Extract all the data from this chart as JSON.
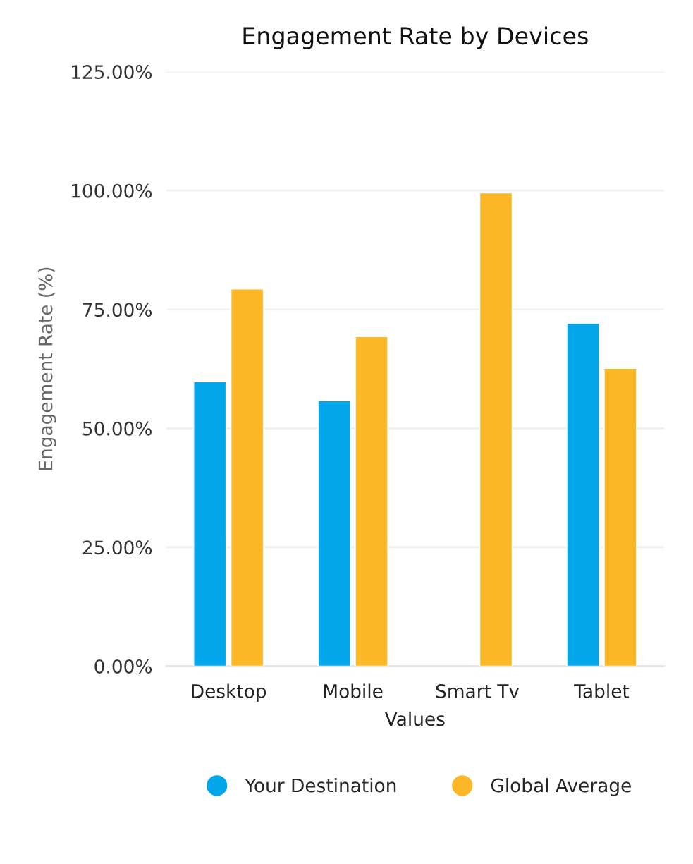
{
  "chart_data": {
    "type": "bar",
    "title": "Engagement Rate by Devices",
    "xlabel": "Values",
    "ylabel": "Engagement Rate (%)",
    "categories": [
      "Desktop",
      "Mobile",
      "Smart Tv",
      "Tablet"
    ],
    "series": [
      {
        "name": "Your Destination",
        "color": "#03a5eb",
        "values": [
          59.8,
          55.8,
          null,
          72.1
        ]
      },
      {
        "name": "Global Average",
        "color": "#fbb726",
        "values": [
          79.3,
          69.3,
          99.5,
          62.6
        ]
      }
    ],
    "ylim": [
      0,
      125
    ],
    "yticks": [
      {
        "value": 0,
        "label": "0.00%"
      },
      {
        "value": 25,
        "label": "25.00%"
      },
      {
        "value": 50,
        "label": "50.00%"
      },
      {
        "value": 75,
        "label": "75.00%"
      },
      {
        "value": 100,
        "label": "100.00%"
      },
      {
        "value": 125,
        "label": "125.00%"
      }
    ],
    "grid": "y",
    "legend": "bottom"
  }
}
